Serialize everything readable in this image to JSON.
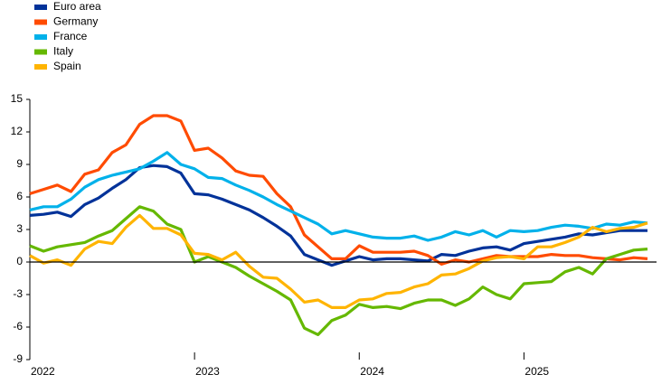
{
  "chart_data": {
    "type": "line",
    "categories": [
      "2022",
      null,
      null,
      null,
      null,
      null,
      null,
      null,
      null,
      null,
      null,
      null,
      "2023",
      null,
      null,
      null,
      null,
      null,
      null,
      null,
      null,
      null,
      null,
      null,
      "2024",
      null,
      null,
      null,
      null,
      null,
      null,
      null,
      null,
      null,
      null,
      null,
      "2025",
      null,
      null,
      null,
      null,
      null,
      null,
      null,
      null,
      null
    ],
    "series": [
      {
        "name": "Euro area",
        "color": "#003299",
        "values": [
          4.3,
          4.4,
          4.6,
          4.2,
          5.3,
          5.9,
          6.8,
          7.6,
          8.7,
          8.9,
          8.8,
          8.2,
          6.3,
          6.2,
          5.8,
          5.3,
          4.8,
          4.1,
          3.3,
          2.4,
          0.7,
          0.2,
          -0.3,
          0.1,
          0.5,
          0.2,
          0.3,
          0.3,
          0.2,
          0.1,
          0.7,
          0.6,
          1.0,
          1.3,
          1.4,
          1.1,
          1.7,
          1.9,
          2.1,
          2.3,
          2.6,
          2.5,
          2.7,
          2.9,
          2.9,
          2.9
        ]
      },
      {
        "name": "Germany",
        "color": "#ff4b00",
        "values": [
          6.3,
          6.7,
          7.1,
          6.5,
          8.1,
          8.5,
          10.1,
          10.8,
          12.7,
          13.5,
          13.5,
          13.0,
          10.3,
          10.5,
          9.6,
          8.4,
          8.0,
          7.9,
          6.3,
          5.1,
          2.5,
          1.4,
          0.3,
          0.3,
          1.5,
          0.9,
          0.9,
          0.9,
          1.0,
          0.6,
          -0.2,
          0.2,
          0.0,
          0.3,
          0.6,
          0.5,
          0.5,
          0.5,
          0.7,
          0.6,
          0.6,
          0.4,
          0.3,
          0.2,
          0.4,
          0.3
        ]
      },
      {
        "name": "France",
        "color": "#00b1ea",
        "values": [
          4.8,
          5.1,
          5.1,
          5.8,
          6.9,
          7.6,
          8.0,
          8.3,
          8.6,
          9.3,
          10.1,
          9.0,
          8.6,
          7.8,
          7.7,
          7.1,
          6.6,
          6.0,
          5.3,
          4.7,
          4.1,
          3.5,
          2.6,
          2.9,
          2.6,
          2.3,
          2.2,
          2.2,
          2.4,
          2.0,
          2.3,
          2.8,
          2.5,
          2.9,
          2.3,
          2.9,
          2.8,
          2.9,
          3.2,
          3.4,
          3.3,
          3.1,
          3.5,
          3.4,
          3.7,
          3.6
        ]
      },
      {
        "name": "Italy",
        "color": "#65b800",
        "values": [
          1.5,
          1.0,
          1.4,
          1.6,
          1.8,
          2.4,
          2.9,
          4.0,
          5.1,
          4.7,
          3.5,
          3.0,
          0.0,
          0.5,
          0.0,
          -0.5,
          -1.3,
          -2.0,
          -2.7,
          -3.5,
          -6.1,
          -6.7,
          -5.4,
          -4.9,
          -3.9,
          -4.2,
          -4.1,
          -4.3,
          -3.8,
          -3.5,
          -3.5,
          -4.0,
          -3.4,
          -2.3,
          -3.0,
          -3.4,
          -2.0,
          -1.9,
          -1.8,
          -0.9,
          -0.5,
          -1.1,
          0.3,
          0.7,
          1.1,
          1.2
        ]
      },
      {
        "name": "Spain",
        "color": "#ffb400",
        "values": [
          0.6,
          -0.1,
          0.2,
          -0.3,
          1.2,
          1.9,
          1.7,
          3.2,
          4.3,
          3.1,
          3.1,
          2.5,
          0.8,
          0.7,
          0.2,
          0.9,
          -0.4,
          -1.4,
          -1.5,
          -2.5,
          -3.7,
          -3.5,
          -4.2,
          -4.2,
          -3.5,
          -3.4,
          -2.9,
          -2.8,
          -2.3,
          -2.0,
          -1.2,
          -1.1,
          -0.6,
          0.1,
          0.4,
          0.5,
          0.3,
          1.4,
          1.4,
          1.8,
          2.3,
          3.2,
          2.8,
          3.1,
          3.2,
          3.6
        ]
      }
    ],
    "ylim": [
      -9,
      15
    ],
    "yticks": [
      -9,
      -6,
      -3,
      0,
      3,
      6,
      9,
      12,
      15
    ],
    "grid": false,
    "legend": "top-left"
  }
}
